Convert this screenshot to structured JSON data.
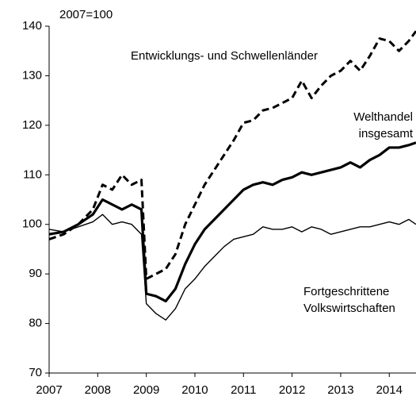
{
  "chart_data": {
    "type": "line",
    "annotations": [
      "2007=100"
    ],
    "x": [
      2007.0,
      2007.3,
      2007.6,
      2007.9,
      2008.1,
      2008.3,
      2008.5,
      2008.7,
      2008.9,
      2009.0,
      2009.2,
      2009.4,
      2009.6,
      2009.8,
      2010.0,
      2010.2,
      2010.4,
      2010.6,
      2010.8,
      2011.0,
      2011.2,
      2011.4,
      2011.6,
      2011.8,
      2012.0,
      2012.2,
      2012.4,
      2012.6,
      2012.8,
      2013.0,
      2013.2,
      2013.4,
      2013.6,
      2013.8,
      2014.0,
      2014.2,
      2014.4,
      2014.55
    ],
    "series": [
      {
        "name": "Entwicklungs- und Schwellenländer",
        "color": "#000000",
        "style": "dashed",
        "values": [
          97,
          98,
          100,
          103,
          108,
          107,
          110,
          108,
          109,
          89,
          90,
          91,
          94,
          100,
          104,
          108,
          111,
          114,
          117,
          120.5,
          121,
          123,
          123.5,
          124.5,
          125.5,
          129,
          125.5,
          128,
          130,
          131,
          133,
          131,
          134,
          137.5,
          137,
          135,
          137,
          139
        ]
      },
      {
        "name": "Welthandel\ninsgesamt",
        "color": "#000000",
        "style": "thick",
        "values": [
          98,
          98.5,
          100,
          102,
          105,
          104,
          103,
          104,
          103,
          86,
          85.5,
          84.5,
          87,
          92,
          96,
          99,
          101,
          103,
          105,
          107,
          108,
          108.5,
          108,
          109,
          109.5,
          110.5,
          110,
          110.5,
          111,
          111.5,
          112.5,
          111.5,
          113,
          114,
          115.5,
          115.5,
          116,
          116.5
        ]
      },
      {
        "name": "Fortgeschrittene\nVolkswirtschaften",
        "color": "#000000",
        "style": "thin",
        "values": [
          99,
          98.5,
          99.5,
          100.5,
          102,
          100,
          100.5,
          100,
          98,
          84,
          82,
          80.7,
          83,
          87,
          89,
          91.5,
          93.5,
          95.5,
          97,
          97.5,
          98,
          99.5,
          99,
          99,
          99.5,
          98.5,
          99.5,
          99,
          98,
          98.5,
          99,
          99.5,
          99.5,
          100,
          100.5,
          100,
          101,
          100
        ]
      }
    ],
    "xlim": [
      2007,
      2014.55
    ],
    "xticks": [
      2007,
      2008,
      2009,
      2010,
      2011,
      2012,
      2013,
      2014
    ],
    "ylim": [
      70,
      140
    ],
    "yticks": [
      70,
      80,
      90,
      100,
      110,
      120,
      130,
      140
    ],
    "grid": false
  }
}
